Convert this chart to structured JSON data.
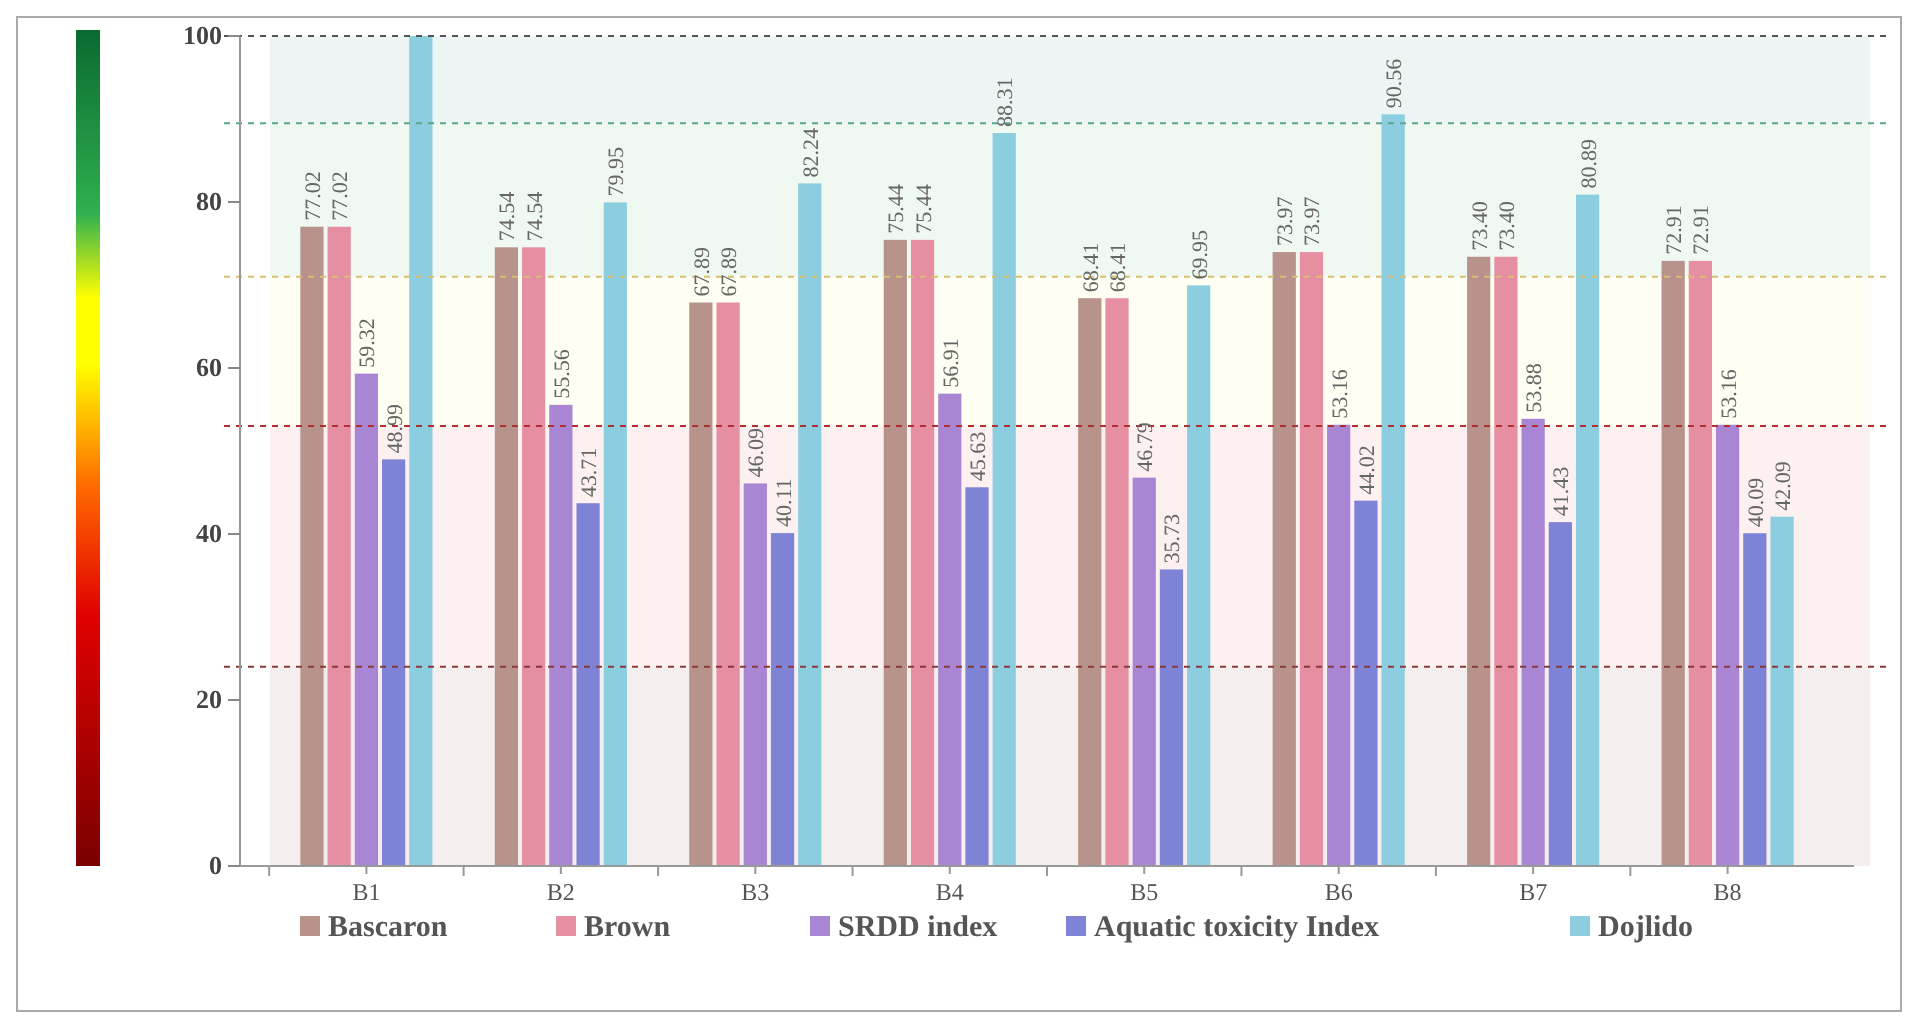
{
  "chart_data": {
    "type": "bar",
    "categories": [
      "B1",
      "B2",
      "B3",
      "B4",
      "B5",
      "B6",
      "B7",
      "B8"
    ],
    "series": [
      {
        "name": "Bascaron",
        "color": "#b8938b",
        "values": [
          77.02,
          74.54,
          67.89,
          75.44,
          68.41,
          73.97,
          73.4,
          72.91
        ],
        "value_labels": [
          "77.02",
          "74.54",
          "67.89",
          "75.44",
          "68.41",
          "73.97",
          "73.40",
          "72.91"
        ]
      },
      {
        "name": "Brown",
        "color": "#e68fa3",
        "values": [
          77.02,
          74.54,
          67.89,
          75.44,
          68.41,
          73.97,
          73.4,
          72.91
        ],
        "value_labels": [
          "77.02",
          "74.54",
          "67.89",
          "75.44",
          "68.41",
          "73.97",
          "73.40",
          "72.91"
        ]
      },
      {
        "name": "SRDD index",
        "color": "#a986d4",
        "values": [
          59.32,
          55.56,
          46.09,
          56.91,
          46.79,
          53.16,
          53.88,
          53.16
        ],
        "value_labels": [
          "59.32",
          "55.56",
          "46.09",
          "56.91",
          "46.79",
          "53.16",
          "53.88",
          "53.16"
        ]
      },
      {
        "name": "Aquatic toxicity Index",
        "color": "#7f83d6",
        "values": [
          48.99,
          43.71,
          40.11,
          45.63,
          35.73,
          44.02,
          41.43,
          40.09
        ],
        "value_labels": [
          "48.99",
          "43.71",
          "40.11",
          "45.63",
          "35.73",
          "44.02",
          "41.43",
          "40.09"
        ]
      },
      {
        "name": "Dojlido",
        "color": "#8ccde0",
        "values": [
          100,
          79.95,
          82.24,
          88.31,
          69.95,
          90.56,
          80.89,
          42.09
        ],
        "value_labels": [
          null,
          "79.95",
          "82.24",
          "88.31",
          "69.95",
          "90.56",
          "80.89",
          "42.09"
        ]
      }
    ],
    "ylim": [
      0,
      100
    ],
    "yticks": [
      0,
      20,
      40,
      60,
      80,
      100
    ],
    "ref_lines": [
      {
        "axis": "y",
        "value": 100,
        "color": "#555555",
        "line_style": "dashed"
      },
      {
        "axis": "y",
        "value": 89.5,
        "color": "#5aa88a",
        "line_style": "dashed"
      },
      {
        "axis": "y",
        "value": 71,
        "color": "#d8c070",
        "line_style": "dashed"
      },
      {
        "axis": "y",
        "value": 53,
        "color": "#b03030",
        "line_style": "dashed"
      },
      {
        "axis": "y",
        "value": 24,
        "color": "#8b3a3a",
        "line_style": "dashed"
      }
    ],
    "bands": [
      {
        "axis": "y",
        "from": 0,
        "to": 24,
        "color": "#f4efee"
      },
      {
        "axis": "y",
        "from": 24,
        "to": 53,
        "color": "#fcf0f0"
      },
      {
        "axis": "y",
        "from": 53,
        "to": 71,
        "color": "#fefef2"
      },
      {
        "axis": "y",
        "from": 71,
        "to": 89.5,
        "color": "#f0f8f2"
      },
      {
        "axis": "y",
        "from": 89.5,
        "to": 100,
        "color": "#ecf5f3"
      }
    ],
    "legend": "bottom"
  }
}
